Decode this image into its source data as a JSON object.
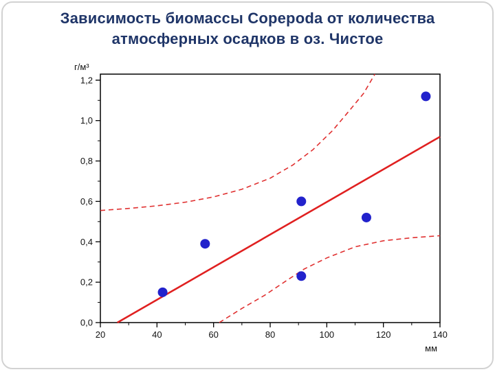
{
  "title": {
    "line1": "Зависимость биомассы Copepoda от количества",
    "line2": "атмосферных осадков в оз. Чистое",
    "color": "#1f3568"
  },
  "chart_data": {
    "type": "scatter",
    "title": "Зависимость биомассы Copepoda от количества атмосферных осадков в оз. Чистое",
    "xlabel": "мм",
    "ylabel": "г/м³",
    "xlim": [
      20,
      140
    ],
    "ylim": [
      0,
      1.23
    ],
    "xticks": [
      20,
      40,
      60,
      80,
      100,
      120,
      140
    ],
    "x_minor_step": 10,
    "y_minor_step": 0.1,
    "ytick_values": [
      0,
      0.2,
      0.4,
      0.6,
      0.8,
      1.0,
      1.2
    ],
    "ytick_labels": [
      "0,0",
      "0,2",
      "0,4",
      "0,6",
      "0,8",
      "1,0",
      "1,2"
    ],
    "points": [
      [
        42,
        0.15
      ],
      [
        57,
        0.39
      ],
      [
        91,
        0.23
      ],
      [
        91,
        0.6
      ],
      [
        114,
        0.52
      ],
      [
        135,
        1.12
      ]
    ],
    "regression_line": {
      "x1": 26,
      "y1": 0.0,
      "x2": 140,
      "y2": 0.92
    },
    "band_upper": [
      [
        20,
        0.555
      ],
      [
        30,
        0.565
      ],
      [
        40,
        0.578
      ],
      [
        50,
        0.596
      ],
      [
        60,
        0.622
      ],
      [
        70,
        0.66
      ],
      [
        80,
        0.715
      ],
      [
        88,
        0.78
      ],
      [
        95,
        0.855
      ],
      [
        102,
        0.95
      ],
      [
        108,
        1.05
      ],
      [
        113,
        1.135
      ],
      [
        117,
        1.23
      ]
    ],
    "band_lower": [
      [
        62,
        0.0
      ],
      [
        70,
        0.07
      ],
      [
        78,
        0.135
      ],
      [
        86,
        0.21
      ],
      [
        92,
        0.265
      ],
      [
        100,
        0.32
      ],
      [
        110,
        0.375
      ],
      [
        120,
        0.405
      ],
      [
        130,
        0.42
      ],
      [
        140,
        0.43
      ]
    ],
    "colors": {
      "point": "#2222cc",
      "line": "#e02020",
      "band": "#e03030",
      "axis": "#000000"
    },
    "legend": "none",
    "grid": false
  }
}
